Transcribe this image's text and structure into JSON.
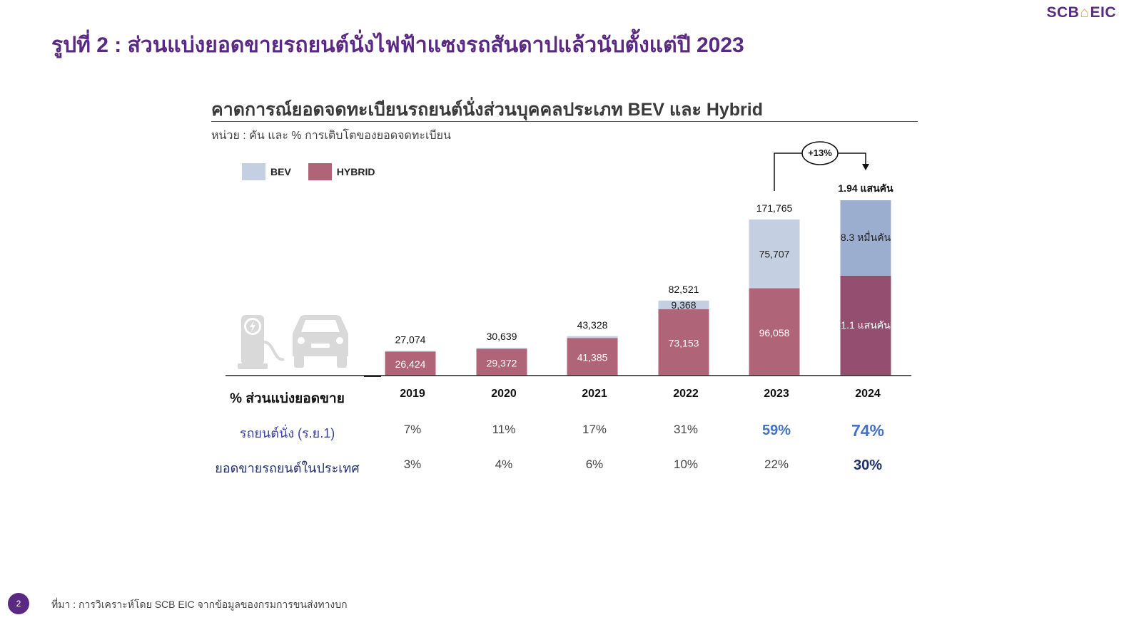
{
  "brand": {
    "logo_text_left": "SCB",
    "logo_text_right": "EIC"
  },
  "page_title": "รูปที่ 2 : ส่วนแบ่งยอดขายรถยนต์นั่งไฟฟ้าแซงรถสันดาปแล้วนับตั้งแต่ปี 2023",
  "colors": {
    "purple": "#5a2a82",
    "bev": "#c5cfe2",
    "hybrid": "#b06478",
    "bev_forecast": "#9caecf",
    "hybrid_forecast": "#934e70",
    "highlight_blue": "#4472c4",
    "highlight_navy": "#1f2f6a"
  },
  "chart_data": {
    "type": "bar",
    "stacked": true,
    "title": "คาดการณ์ยอดจดทะเบียนรถยนต์นั่งส่วนบุคคลประเภท BEV และ Hybrid",
    "subtitle": "หน่วย : คัน และ % การเติบโตของยอดจดทะเบียน",
    "categories": [
      "2019",
      "2020",
      "2021",
      "2022",
      "2023",
      "2024"
    ],
    "series": [
      {
        "name": "HYBRID",
        "values": [
          26424,
          29372,
          41385,
          73153,
          96058,
          110000
        ]
      },
      {
        "name": "BEV",
        "values": [
          650,
          1267,
          1943,
          9368,
          75707,
          83000
        ]
      }
    ],
    "totals": [
      27074,
      30639,
      43328,
      82521,
      171765,
      194000
    ],
    "bar_labels": {
      "totals": [
        "27,074",
        "30,639",
        "43,328",
        "82,521",
        "171,765",
        "1.94 แสนคัน"
      ],
      "hybrid": [
        "26,424",
        "29,372",
        "41,385",
        "73,153",
        "96,058",
        "1.1 แสนคัน"
      ],
      "bev": [
        "",
        "",
        "",
        "9,368",
        "75,707",
        "8.3 หมื่นคัน"
      ]
    },
    "legend": [
      "BEV",
      "HYBRID"
    ],
    "legend_position": "top-left",
    "growth_annotation": "+13%",
    "forecast_category": "2024",
    "ylim": [
      0,
      200000
    ],
    "grid": false
  },
  "table": {
    "header_label": "% ส่วนแบ่งยอดขาย",
    "years": [
      "2019",
      "2020",
      "2021",
      "2022",
      "2023",
      "2024"
    ],
    "rows": [
      {
        "label": "รถยนต์นั่ง (ร.ย.1)",
        "values": [
          "7%",
          "11%",
          "17%",
          "31%",
          "59%",
          "74%"
        ]
      },
      {
        "label": "ยอดขายรถยนต์ในประเทศ",
        "values": [
          "3%",
          "4%",
          "6%",
          "10%",
          "22%",
          "30%"
        ]
      }
    ]
  },
  "illustration": {
    "icons": [
      "ev-charger-icon",
      "car-icon"
    ]
  },
  "footer": {
    "page_number": "2",
    "source": "ที่มา : การวิเคราะห์โดย SCB EIC จากข้อมูลของกรมการขนส่งทางบก"
  }
}
